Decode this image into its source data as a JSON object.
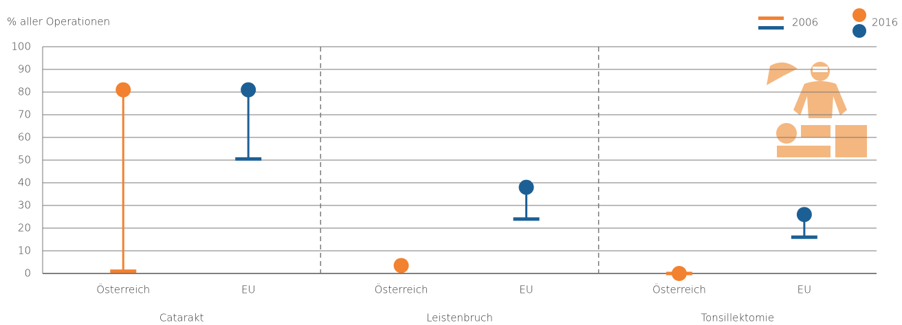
{
  "chart_data": {
    "type": "dumbbell",
    "y_label": "% aller Operationen",
    "legend": [
      "2006",
      "2016"
    ],
    "groups": [
      {
        "name": "Catarakt",
        "items": [
          {
            "label": "Österreich",
            "color": "#f28130",
            "values": [
              1,
              81
            ]
          },
          {
            "label": "EU",
            "color": "#1c5f95",
            "values": [
              50.5,
              81
            ]
          }
        ]
      },
      {
        "name": "Leistenbruch",
        "items": [
          {
            "label": "Österreich",
            "color": "#f28130",
            "values": [
              null,
              3.5
            ]
          },
          {
            "label": "EU",
            "color": "#1c5f95",
            "values": [
              24,
              38
            ]
          }
        ]
      },
      {
        "name": "Tonsillektomie",
        "items": [
          {
            "label": "Österreich",
            "color": "#f28130",
            "values": [
              0,
              0
            ]
          },
          {
            "label": "EU",
            "color": "#1c5f95",
            "values": [
              16,
              26
            ]
          }
        ]
      }
    ],
    "ylim": [
      0,
      100
    ],
    "yticks": [
      0,
      10,
      20,
      30,
      40,
      50,
      60,
      70,
      80,
      90,
      100
    ],
    "grid": true
  }
}
